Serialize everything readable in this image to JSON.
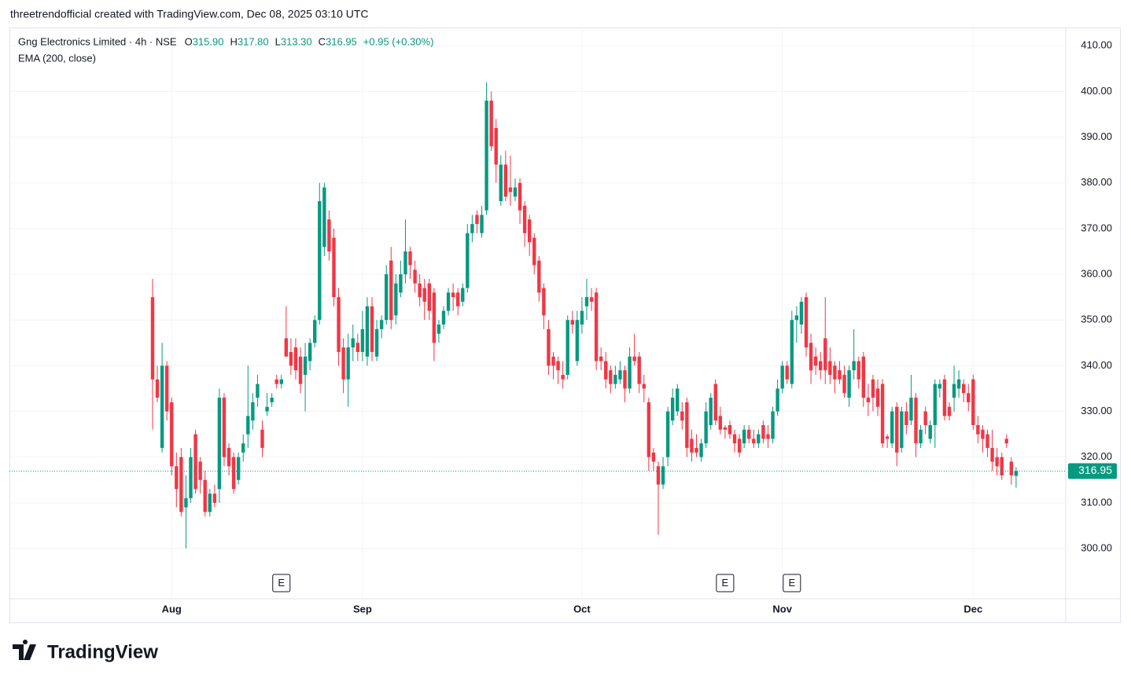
{
  "chart_data": {
    "type": "candlestick",
    "credit": "threetrendofficial created with TradingView.com, Dec 08, 2025 03:10 UTC",
    "title": "Gng Electronics Limited · 4h · NSE",
    "ohlc": [
      {
        "label": "O",
        "value": "315.90"
      },
      {
        "label": "H",
        "value": "317.80"
      },
      {
        "label": "L",
        "value": "313.30"
      },
      {
        "label": "C",
        "value": "316.95"
      }
    ],
    "change": "+0.95 (+0.30%)",
    "indicator": "EMA (200, close)",
    "logo": "TradingView",
    "last_price_label": "316.95",
    "up_color": "#089981",
    "down_color": "#f23645",
    "grid": true,
    "xlim": [
      -30,
      191.4
    ],
    "ylim": [
      289,
      414
    ],
    "yticks": [
      {
        "value": 300,
        "label": "300.00"
      },
      {
        "value": 310,
        "label": "310.00"
      },
      {
        "value": 320,
        "label": "320.00"
      },
      {
        "value": 330,
        "label": "330.00"
      },
      {
        "value": 340,
        "label": "340.00"
      },
      {
        "value": 350,
        "label": "350.00"
      },
      {
        "value": 360,
        "label": "360.00"
      },
      {
        "value": 370,
        "label": "370.00"
      },
      {
        "value": 380,
        "label": "380.00"
      },
      {
        "value": 390,
        "label": "390.00"
      },
      {
        "value": 400,
        "label": "400.00"
      },
      {
        "value": 410,
        "label": "410.00"
      }
    ],
    "xticks": [
      {
        "value": 4,
        "label": "Aug"
      },
      {
        "value": 44,
        "label": "Sep"
      },
      {
        "value": 90,
        "label": "Oct"
      },
      {
        "value": 132,
        "label": "Nov"
      },
      {
        "value": 172,
        "label": "Dec"
      }
    ],
    "events": [
      {
        "value": 27,
        "label": "E"
      },
      {
        "value": 120,
        "label": "E"
      },
      {
        "value": 134,
        "label": "E"
      }
    ],
    "candles": [
      [
        355,
        359,
        326,
        337
      ],
      [
        337,
        340,
        332,
        333
      ],
      [
        322,
        345,
        321,
        340
      ],
      [
        340,
        341,
        328,
        330
      ],
      [
        332,
        333,
        316,
        318
      ],
      [
        318,
        321,
        309,
        313
      ],
      [
        320,
        322,
        307,
        308
      ],
      [
        309,
        316,
        300,
        311
      ],
      [
        311,
        322,
        310,
        320
      ],
      [
        325,
        326,
        312,
        313
      ],
      [
        319,
        320,
        312,
        315
      ],
      [
        315,
        317,
        307,
        308
      ],
      [
        308,
        313,
        307,
        312
      ],
      [
        312,
        314,
        309,
        310
      ],
      [
        313,
        335,
        310,
        333
      ],
      [
        333,
        334,
        318,
        320
      ],
      [
        322,
        323,
        316,
        318
      ],
      [
        320,
        321,
        312,
        313
      ],
      [
        315,
        321,
        314,
        320
      ],
      [
        321,
        325,
        319,
        323
      ],
      [
        325,
        340,
        322,
        329
      ],
      [
        328,
        334,
        326,
        332
      ],
      [
        333,
        338,
        331,
        336
      ],
      [
        326,
        328,
        320,
        322
      ],
      [
        330,
        334,
        329,
        331
      ],
      [
        332,
        334,
        331,
        333
      ],
      [
        337,
        338,
        335,
        336
      ],
      [
        336,
        338,
        335,
        337
      ],
      [
        346,
        353,
        342,
        342
      ],
      [
        343,
        346,
        338,
        340
      ],
      [
        344,
        346,
        337,
        339
      ],
      [
        342,
        344,
        334,
        336
      ],
      [
        338,
        345,
        330,
        342
      ],
      [
        341,
        346,
        339,
        345
      ],
      [
        345,
        351,
        344,
        350
      ],
      [
        350,
        380,
        349,
        376
      ],
      [
        366,
        380,
        364,
        379
      ],
      [
        372,
        374,
        363,
        365
      ],
      [
        368,
        370,
        353,
        355
      ],
      [
        355,
        357,
        340,
        343
      ],
      [
        344,
        346,
        334,
        337
      ],
      [
        337,
        347,
        331,
        344
      ],
      [
        344,
        349,
        341,
        346
      ],
      [
        345,
        347,
        341,
        343
      ],
      [
        343,
        352,
        341,
        348
      ],
      [
        342,
        355,
        340,
        353
      ],
      [
        353,
        355,
        341,
        343
      ],
      [
        342,
        350,
        341,
        348
      ],
      [
        348,
        351,
        346,
        350
      ],
      [
        350,
        362,
        349,
        360
      ],
      [
        363,
        366,
        348,
        350
      ],
      [
        351,
        360,
        349,
        358
      ],
      [
        356,
        363,
        355,
        360
      ],
      [
        360,
        372,
        358,
        365
      ],
      [
        365,
        366,
        359,
        362
      ],
      [
        361,
        363,
        356,
        358
      ],
      [
        358,
        360,
        353,
        355
      ],
      [
        357,
        359,
        350,
        354
      ],
      [
        358,
        359,
        350,
        352
      ],
      [
        356,
        357,
        341,
        345
      ],
      [
        347,
        350,
        345,
        349
      ],
      [
        349,
        353,
        348,
        352
      ],
      [
        352,
        357,
        351,
        356
      ],
      [
        356,
        358,
        352,
        355
      ],
      [
        356,
        357,
        351,
        353
      ],
      [
        354,
        358,
        353,
        357
      ],
      [
        357,
        371,
        356,
        369
      ],
      [
        369,
        373,
        367,
        371
      ],
      [
        373,
        374,
        369,
        371
      ],
      [
        369,
        375,
        368,
        373
      ],
      [
        374,
        402,
        373,
        398
      ],
      [
        398,
        400,
        387,
        388
      ],
      [
        392,
        394,
        380,
        384
      ],
      [
        376,
        386,
        375,
        384
      ],
      [
        384,
        387,
        376,
        377
      ],
      [
        379,
        386,
        375,
        378
      ],
      [
        377,
        381,
        376,
        379
      ],
      [
        380,
        381,
        371,
        374
      ],
      [
        375,
        376,
        366,
        369
      ],
      [
        372,
        373,
        364,
        367
      ],
      [
        368,
        369,
        360,
        362
      ],
      [
        363,
        364,
        354,
        356
      ],
      [
        357,
        358,
        348,
        351
      ],
      [
        348,
        350,
        338,
        340
      ],
      [
        342,
        343,
        337,
        340
      ],
      [
        341,
        342,
        336,
        339
      ],
      [
        338,
        341,
        335,
        337
      ],
      [
        338,
        351,
        337,
        350
      ],
      [
        350,
        352,
        347,
        349
      ],
      [
        341,
        352,
        340,
        350
      ],
      [
        349,
        355,
        347,
        352
      ],
      [
        353,
        359,
        350,
        355
      ],
      [
        355,
        357,
        352,
        354
      ],
      [
        356,
        357,
        339,
        341
      ],
      [
        342,
        344,
        339,
        341
      ],
      [
        341,
        343,
        335,
        337
      ],
      [
        339,
        340,
        334,
        336
      ],
      [
        336,
        340,
        335,
        338
      ],
      [
        337,
        341,
        336,
        339
      ],
      [
        339,
        340,
        332,
        335
      ],
      [
        335,
        344,
        334,
        342
      ],
      [
        342,
        347,
        340,
        341
      ],
      [
        342,
        343,
        334,
        336
      ],
      [
        336,
        338,
        332,
        335
      ],
      [
        332,
        333,
        317,
        320
      ],
      [
        321,
        322,
        317,
        319
      ],
      [
        318,
        319,
        303,
        314
      ],
      [
        314,
        320,
        313,
        318
      ],
      [
        320,
        331,
        318,
        330
      ],
      [
        328,
        335,
        327,
        333
      ],
      [
        330,
        336,
        329,
        335
      ],
      [
        330,
        332,
        326,
        328
      ],
      [
        332,
        333,
        320,
        322
      ],
      [
        324,
        326,
        319,
        321
      ],
      [
        322,
        325,
        320,
        321
      ],
      [
        320,
        324,
        319,
        323
      ],
      [
        323,
        332,
        322,
        330
      ],
      [
        327,
        334,
        326,
        333
      ],
      [
        336,
        337,
        327,
        328
      ],
      [
        329,
        331,
        325,
        326
      ],
      [
        326.5,
        327,
        324,
        326
      ],
      [
        327,
        328,
        324,
        325
      ],
      [
        325,
        326,
        321,
        323
      ],
      [
        324,
        325,
        320,
        321
      ],
      [
        323,
        327,
        322,
        326
      ],
      [
        326,
        327,
        323,
        324
      ],
      [
        324,
        326,
        322,
        323
      ],
      [
        323,
        326,
        322,
        325
      ],
      [
        327,
        328,
        323,
        324
      ],
      [
        325,
        327,
        322,
        324
      ],
      [
        324,
        331,
        323,
        330
      ],
      [
        330,
        337,
        329,
        335
      ],
      [
        335,
        341,
        334,
        340
      ],
      [
        340,
        341,
        336,
        337
      ],
      [
        336,
        352,
        335,
        350
      ],
      [
        350,
        353,
        345,
        351
      ],
      [
        349,
        355,
        347,
        354
      ],
      [
        355,
        356,
        342,
        344
      ],
      [
        345,
        347,
        336,
        339
      ],
      [
        342,
        344,
        338,
        340
      ],
      [
        341,
        343,
        337,
        339
      ],
      [
        346,
        355,
        336,
        339
      ],
      [
        341,
        344,
        336,
        338
      ],
      [
        340,
        341,
        334,
        337
      ],
      [
        339,
        341,
        336,
        337
      ],
      [
        338,
        340,
        333,
        334
      ],
      [
        333,
        340,
        331,
        339
      ],
      [
        339,
        348,
        337,
        341
      ],
      [
        341,
        342,
        335,
        337
      ],
      [
        342,
        343,
        331,
        333
      ],
      [
        333,
        336,
        329,
        332
      ],
      [
        337,
        338,
        330,
        333
      ],
      [
        335,
        337,
        329,
        331
      ],
      [
        336,
        337,
        322,
        323
      ],
      [
        324.5,
        325,
        322,
        324
      ],
      [
        323,
        331,
        322,
        330
      ],
      [
        331,
        332,
        318,
        321
      ],
      [
        322,
        331,
        321,
        330
      ],
      [
        330,
        332,
        325,
        327
      ],
      [
        328,
        338,
        327,
        333
      ],
      [
        333,
        334,
        320,
        323
      ],
      [
        323,
        327,
        322,
        326
      ],
      [
        330,
        331,
        325,
        327
      ],
      [
        324,
        328,
        323,
        327
      ],
      [
        327,
        337,
        322,
        336
      ],
      [
        335,
        337,
        333,
        336
      ],
      [
        337,
        338,
        328,
        329
      ],
      [
        331,
        332,
        328,
        329
      ],
      [
        333,
        340,
        330,
        336
      ],
      [
        335,
        339,
        333,
        337
      ],
      [
        336,
        337,
        332,
        334
      ],
      [
        334,
        336,
        330,
        332
      ],
      [
        337,
        338,
        326,
        327
      ],
      [
        327,
        329,
        323,
        325
      ],
      [
        326,
        327,
        321,
        324
      ],
      [
        325,
        326,
        320,
        322
      ],
      [
        322,
        326,
        317,
        319
      ],
      [
        320,
        322,
        316,
        318
      ],
      [
        320,
        321,
        315,
        316
      ],
      [
        324,
        325,
        322,
        323
      ],
      [
        319,
        320,
        314,
        316
      ],
      [
        315.9,
        317.8,
        313.3,
        316.95
      ]
    ]
  }
}
